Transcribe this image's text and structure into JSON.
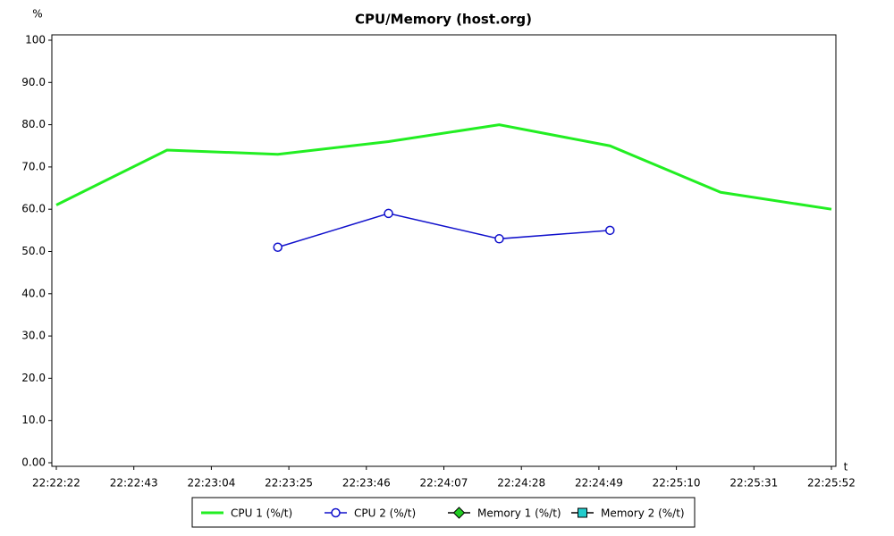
{
  "chart_data": {
    "type": "line",
    "title": "CPU/Memory (host.org)",
    "y_label": "%",
    "x_label": "t",
    "xlim": [
      "22:22:22",
      "22:25:52"
    ],
    "xticks": [
      "22:22:22",
      "22:22:43",
      "22:23:04",
      "22:23:25",
      "22:23:46",
      "22:24:07",
      "22:24:28",
      "22:24:49",
      "22:25:10",
      "22:25:31",
      "22:25:52"
    ],
    "ylim": [
      0,
      100
    ],
    "yticks": [
      {
        "value": 0,
        "label": "0.00"
      },
      {
        "value": 10,
        "label": "10.0"
      },
      {
        "value": 20,
        "label": "20.0"
      },
      {
        "value": 30,
        "label": "30.0"
      },
      {
        "value": 40,
        "label": "40.0"
      },
      {
        "value": 50,
        "label": "50.0"
      },
      {
        "value": 60,
        "label": "60.0"
      },
      {
        "value": 70,
        "label": "70.0"
      },
      {
        "value": 80,
        "label": "80.0"
      },
      {
        "value": 90,
        "label": "90.0"
      },
      100
    ],
    "series": [
      {
        "name": "CPU 1 (%/t)",
        "color": "#22ee22",
        "marker": "none",
        "x": [
          "22:22:22",
          "22:22:52",
          "22:23:22",
          "22:23:52",
          "22:24:22",
          "22:24:52",
          "22:25:22",
          "22:25:52"
        ],
        "values": [
          61,
          74,
          73,
          76,
          80,
          75,
          64,
          60
        ]
      },
      {
        "name": "CPU 2 (%/t)",
        "color": "#1111cc",
        "marker": "circle",
        "x": [
          "22:23:22",
          "22:23:52",
          "22:24:22",
          "22:24:52"
        ],
        "values": [
          51,
          59,
          53,
          55
        ]
      },
      {
        "name": "Memory 1 (%/t)",
        "color": "#22cc22",
        "marker": "diamond",
        "x": [],
        "values": []
      },
      {
        "name": "Memory 2 (%/t)",
        "color": "#22cccc",
        "marker": "square",
        "x": [],
        "values": []
      }
    ]
  }
}
